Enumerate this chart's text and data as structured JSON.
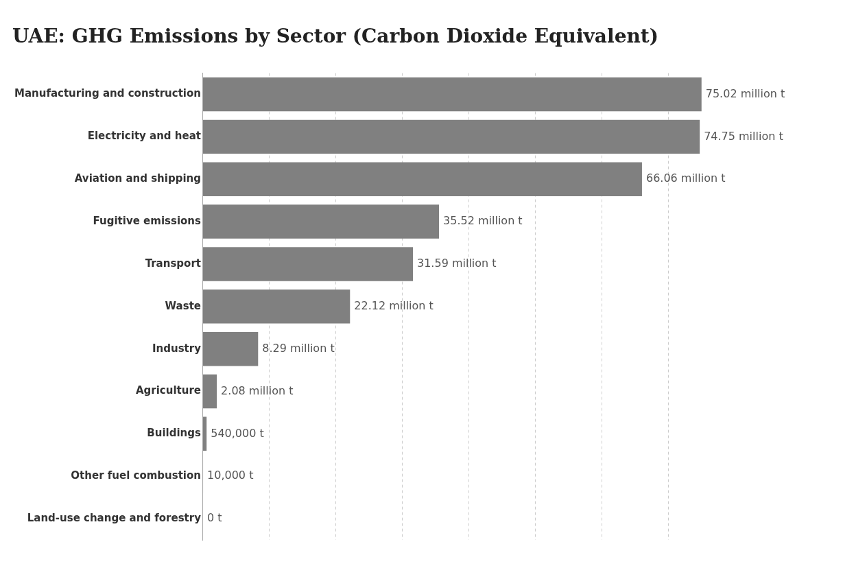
{
  "chart_data": {
    "type": "bar",
    "orientation": "horizontal",
    "title": "UAE: GHG Emissions by Sector (Carbon Dioxide Equivalent)",
    "categories": [
      "Manufacturing and construction",
      "Electricity and heat",
      "Aviation and shipping",
      "Fugitive emissions",
      "Transport",
      "Waste",
      "Industry",
      "Agriculture",
      "Buildings",
      "Other fuel combustion",
      "Land-use change and forestry"
    ],
    "values": [
      75020000,
      74750000,
      66060000,
      35520000,
      31590000,
      22120000,
      8290000,
      2080000,
      540000,
      10000,
      0
    ],
    "value_labels": [
      "75.02 million t",
      "74.75 million t",
      "66.06 million t",
      "35.52 million t",
      "31.59 million t",
      "22.12 million t",
      "8.29 million t",
      "2.08 million t",
      "540,000 t",
      "10,000 t",
      "0 t"
    ],
    "color": "#808080",
    "xticks": [
      {
        "value": 10000000,
        "label": null
      },
      {
        "value": 20000000,
        "label": null
      },
      {
        "value": 30000000,
        "label": null
      },
      {
        "value": 40000000,
        "label": null
      },
      {
        "value": 50000000,
        "label": null
      },
      {
        "value": 60000000,
        "label": null
      },
      {
        "value": 70000000,
        "label": null
      }
    ],
    "grid": "x",
    "tick_labels": "y"
  }
}
